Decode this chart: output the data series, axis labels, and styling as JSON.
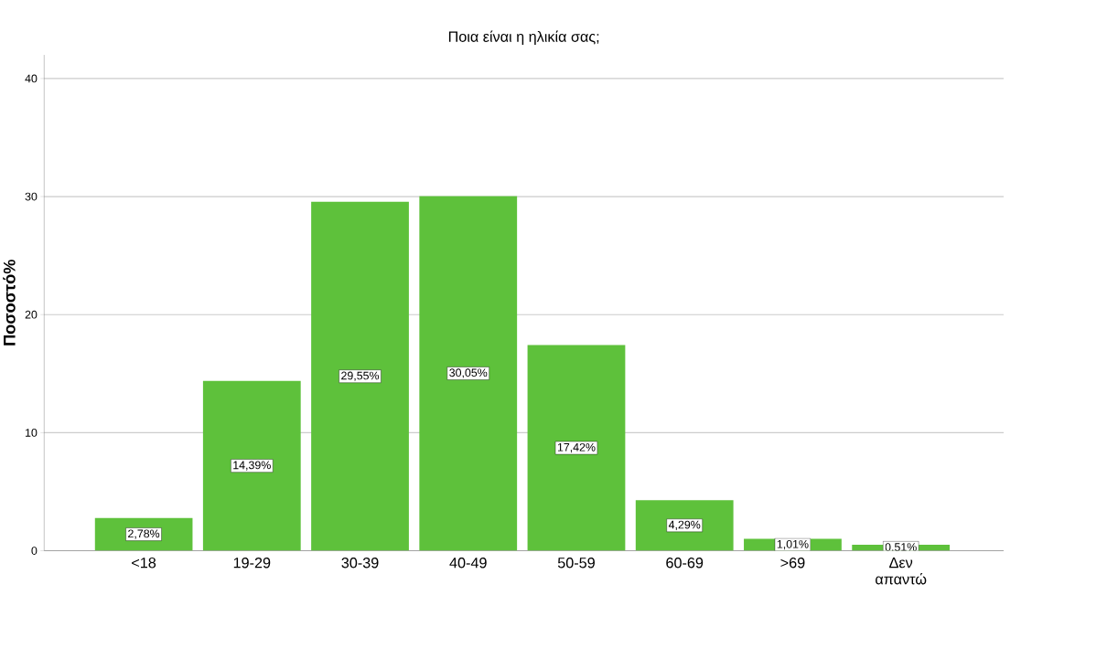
{
  "chart_data": {
    "type": "bar",
    "title": "Ποια είναι η ηλικία σας;",
    "ylabel": "Ποσοστό%",
    "categories": [
      "<18",
      "19-29",
      "30-39",
      "40-49",
      "50-59",
      "60-69",
      ">69",
      "Δεν απαντώ"
    ],
    "values": [
      2.78,
      14.39,
      29.55,
      30.05,
      17.42,
      4.29,
      1.01,
      0.51
    ],
    "value_labels": [
      "2,78%",
      "14,39%",
      "29,55%",
      "30,05%",
      "17,42%",
      "4,29%",
      "1,01%",
      "0,51%"
    ],
    "color": "#5ec13b",
    "ylim": [
      0,
      42
    ],
    "yticks": [
      0,
      10,
      20,
      30,
      40
    ],
    "grid": "y"
  }
}
